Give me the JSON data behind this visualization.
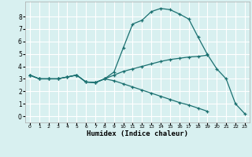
{
  "xlabel": "Humidex (Indice chaleur)",
  "bg_color": "#d8f0f0",
  "grid_color": "#ffffff",
  "line_color": "#1a7070",
  "xlim": [
    -0.5,
    23.5
  ],
  "ylim": [
    -0.5,
    9.2
  ],
  "xticks": [
    0,
    1,
    2,
    3,
    4,
    5,
    6,
    7,
    8,
    9,
    10,
    11,
    12,
    13,
    14,
    15,
    16,
    17,
    18,
    19,
    20,
    21,
    22,
    23
  ],
  "yticks": [
    0,
    1,
    2,
    3,
    4,
    5,
    6,
    7,
    8
  ],
  "line1_x": [
    0,
    1,
    2,
    3,
    4,
    5,
    6,
    7,
    8,
    9,
    10,
    11,
    12,
    13,
    14,
    15,
    16,
    17,
    18,
    19,
    20,
    21,
    22,
    23
  ],
  "line1_y": [
    3.3,
    3.0,
    3.0,
    3.0,
    3.15,
    3.3,
    2.75,
    2.7,
    3.0,
    3.55,
    5.5,
    7.4,
    7.7,
    8.4,
    8.65,
    8.55,
    8.2,
    7.8,
    6.35,
    4.95,
    3.8,
    3.0,
    1.0,
    0.2
  ],
  "line2_x": [
    0,
    1,
    2,
    3,
    4,
    5,
    6,
    7,
    8,
    9,
    10,
    11,
    12,
    13,
    14,
    15,
    16,
    17,
    18,
    19,
    20,
    21,
    22,
    23
  ],
  "line2_y": [
    3.3,
    3.0,
    3.0,
    3.0,
    3.15,
    3.3,
    2.75,
    2.7,
    3.0,
    3.3,
    3.6,
    3.8,
    4.0,
    4.2,
    4.4,
    4.55,
    4.65,
    4.75,
    4.8,
    4.9,
    null,
    null,
    null,
    null
  ],
  "line3_x": [
    0,
    1,
    2,
    3,
    4,
    5,
    6,
    7,
    8,
    9,
    10,
    11,
    12,
    13,
    14,
    15,
    16,
    17,
    18,
    19,
    20,
    21,
    22,
    23
  ],
  "line3_y": [
    3.3,
    3.0,
    3.0,
    3.0,
    3.15,
    3.3,
    2.75,
    2.7,
    3.0,
    2.85,
    2.6,
    2.35,
    2.1,
    1.85,
    1.6,
    1.35,
    1.1,
    0.9,
    0.65,
    0.4,
    null,
    null,
    null,
    null
  ]
}
